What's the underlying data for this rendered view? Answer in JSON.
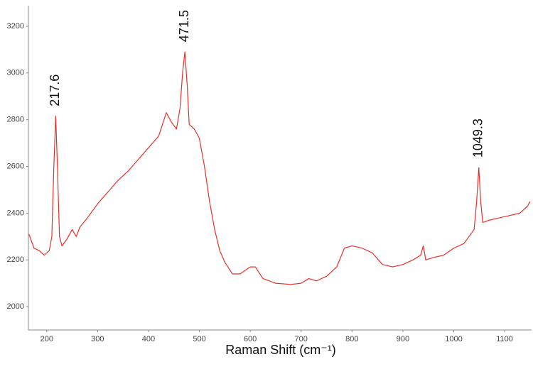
{
  "chart_data": {
    "type": "line",
    "x_label": "Raman Shift (cm⁻¹)",
    "x": [
      165,
      175,
      185,
      195,
      205,
      210,
      214,
      217.6,
      221,
      225,
      230,
      240,
      250,
      258,
      265,
      280,
      300,
      320,
      340,
      360,
      380,
      400,
      420,
      435,
      445,
      455,
      462,
      467,
      471.5,
      476,
      480,
      490,
      500,
      510,
      520,
      530,
      540,
      550,
      565,
      580,
      600,
      610,
      625,
      650,
      680,
      700,
      715,
      730,
      750,
      770,
      785,
      800,
      820,
      840,
      860,
      880,
      900,
      920,
      935,
      940,
      945,
      960,
      980,
      1000,
      1020,
      1040,
      1045,
      1049.3,
      1053,
      1057,
      1070,
      1090,
      1110,
      1130,
      1145,
      1150
    ],
    "series": [
      {
        "color": "#e8302a",
        "values": [
          2310,
          2250,
          2240,
          2220,
          2240,
          2300,
          2600,
          2815,
          2600,
          2300,
          2260,
          2290,
          2330,
          2300,
          2340,
          2380,
          2440,
          2490,
          2540,
          2580,
          2630,
          2680,
          2730,
          2830,
          2790,
          2760,
          2850,
          3000,
          3090,
          2950,
          2780,
          2760,
          2720,
          2600,
          2450,
          2330,
          2240,
          2190,
          2140,
          2140,
          2170,
          2170,
          2120,
          2100,
          2095,
          2100,
          2120,
          2110,
          2130,
          2170,
          2250,
          2260,
          2250,
          2230,
          2180,
          2170,
          2180,
          2200,
          2220,
          2260,
          2200,
          2210,
          2220,
          2250,
          2270,
          2330,
          2450,
          2595,
          2450,
          2360,
          2370,
          2380,
          2390,
          2400,
          2430,
          2450
        ]
      }
    ],
    "annotations": [
      {
        "label": "217.6",
        "x": 217.6
      },
      {
        "label": "471.5",
        "x": 471.5
      },
      {
        "label": "1049.3",
        "x": 1049.3
      }
    ],
    "xlim": [
      164,
      1153
    ],
    "ylim": [
      1900,
      3288
    ],
    "xticks": [
      200,
      300,
      400,
      500,
      600,
      700,
      800,
      900,
      1000,
      1100
    ],
    "yticks": [
      2000,
      2200,
      2400,
      2600,
      2800,
      3000,
      3200
    ],
    "grid": false
  }
}
